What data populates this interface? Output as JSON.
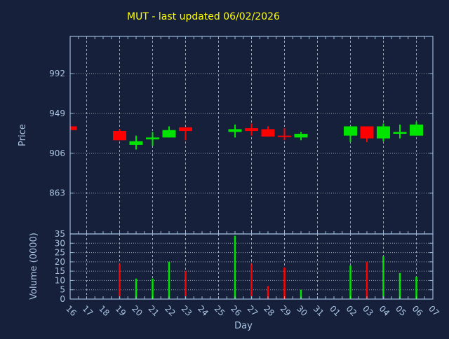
{
  "title": "MUT - last updated 06/02/2026",
  "colors": {
    "background": "#16203a",
    "frame": "#9cb8da",
    "label": "#a9c3e2",
    "grid": "#b9bfc9",
    "title": "#ffff00",
    "up": "#00e400",
    "down": "#ff0000"
  },
  "chart_data": [
    {
      "type": "candlestick",
      "title": "MUT - last updated 06/02/2026",
      "xlabel": "Day",
      "ylabel": "Price",
      "categories": [
        "16",
        "17",
        "18",
        "19",
        "20",
        "21",
        "22",
        "23",
        "24",
        "25",
        "26",
        "27",
        "28",
        "29",
        "30",
        "31",
        "01",
        "02",
        "03",
        "04",
        "05",
        "06",
        "07"
      ],
      "yticks": [
        863,
        906,
        949,
        992
      ],
      "ylim": [
        819,
        1032
      ],
      "x_gridline_days": [
        "17",
        "19",
        "21",
        "23",
        "25",
        "27",
        "29",
        "31",
        "02",
        "04",
        "06"
      ],
      "grid": "dotted",
      "legend": "none",
      "ohlc": [
        {
          "day": "16",
          "open": 935,
          "high": 935,
          "low": 931,
          "close": 931,
          "dir": "down"
        },
        {
          "day": "19",
          "open": 930,
          "high": 932,
          "low": 920,
          "close": 920,
          "dir": "down"
        },
        {
          "day": "20",
          "open": 915,
          "high": 925,
          "low": 910,
          "close": 919,
          "dir": "up"
        },
        {
          "day": "21",
          "open": 921,
          "high": 929,
          "low": 914,
          "close": 923,
          "dir": "up"
        },
        {
          "day": "22",
          "open": 923,
          "high": 935,
          "low": 923,
          "close": 931,
          "dir": "up"
        },
        {
          "day": "23",
          "open": 934,
          "high": 934,
          "low": 920,
          "close": 930,
          "dir": "down"
        },
        {
          "day": "26",
          "open": 929,
          "high": 937,
          "low": 923,
          "close": 932,
          "dir": "up"
        },
        {
          "day": "27",
          "open": 933,
          "high": 938,
          "low": 925,
          "close": 930,
          "dir": "down"
        },
        {
          "day": "28",
          "open": 932,
          "high": 935,
          "low": 924,
          "close": 924,
          "dir": "down"
        },
        {
          "day": "29",
          "open": 925,
          "high": 933,
          "low": 920,
          "close": 924,
          "dir": "down"
        },
        {
          "day": "30",
          "open": 923,
          "high": 929,
          "low": 920,
          "close": 927,
          "dir": "up"
        },
        {
          "day": "02",
          "open": 925,
          "high": 935,
          "low": 918,
          "close": 935,
          "dir": "up"
        },
        {
          "day": "03",
          "open": 935,
          "high": 935,
          "low": 918,
          "close": 922,
          "dir": "down"
        },
        {
          "day": "04",
          "open": 922,
          "high": 938,
          "low": 919,
          "close": 935,
          "dir": "up"
        },
        {
          "day": "05",
          "open": 927,
          "high": 937,
          "low": 922,
          "close": 929,
          "dir": "up"
        },
        {
          "day": "06",
          "open": 925,
          "high": 940,
          "low": 925,
          "close": 937,
          "dir": "up"
        }
      ]
    },
    {
      "type": "bar",
      "xlabel": "Day",
      "ylabel": "Volume (0000)",
      "categories": [
        "16",
        "17",
        "18",
        "19",
        "20",
        "21",
        "22",
        "23",
        "24",
        "25",
        "26",
        "27",
        "28",
        "29",
        "30",
        "31",
        "01",
        "02",
        "03",
        "04",
        "05",
        "06",
        "07"
      ],
      "yticks": [
        0,
        5,
        10,
        15,
        20,
        25,
        30,
        35
      ],
      "ylim": [
        0,
        35
      ],
      "grid": "dotted",
      "series": [
        {
          "day": "19",
          "value": 19,
          "dir": "down"
        },
        {
          "day": "20",
          "value": 11,
          "dir": "up"
        },
        {
          "day": "21",
          "value": 11,
          "dir": "up"
        },
        {
          "day": "22",
          "value": 20,
          "dir": "up"
        },
        {
          "day": "23",
          "value": 15,
          "dir": "down"
        },
        {
          "day": "26",
          "value": 34,
          "dir": "up"
        },
        {
          "day": "27",
          "value": 19,
          "dir": "down"
        },
        {
          "day": "28",
          "value": 7,
          "dir": "down"
        },
        {
          "day": "29",
          "value": 17,
          "dir": "down"
        },
        {
          "day": "30",
          "value": 5,
          "dir": "up"
        },
        {
          "day": "02",
          "value": 18,
          "dir": "up"
        },
        {
          "day": "03",
          "value": 20,
          "dir": "down"
        },
        {
          "day": "04",
          "value": 23,
          "dir": "up"
        },
        {
          "day": "05",
          "value": 14,
          "dir": "up"
        },
        {
          "day": "06",
          "value": 12,
          "dir": "up"
        }
      ]
    }
  ]
}
